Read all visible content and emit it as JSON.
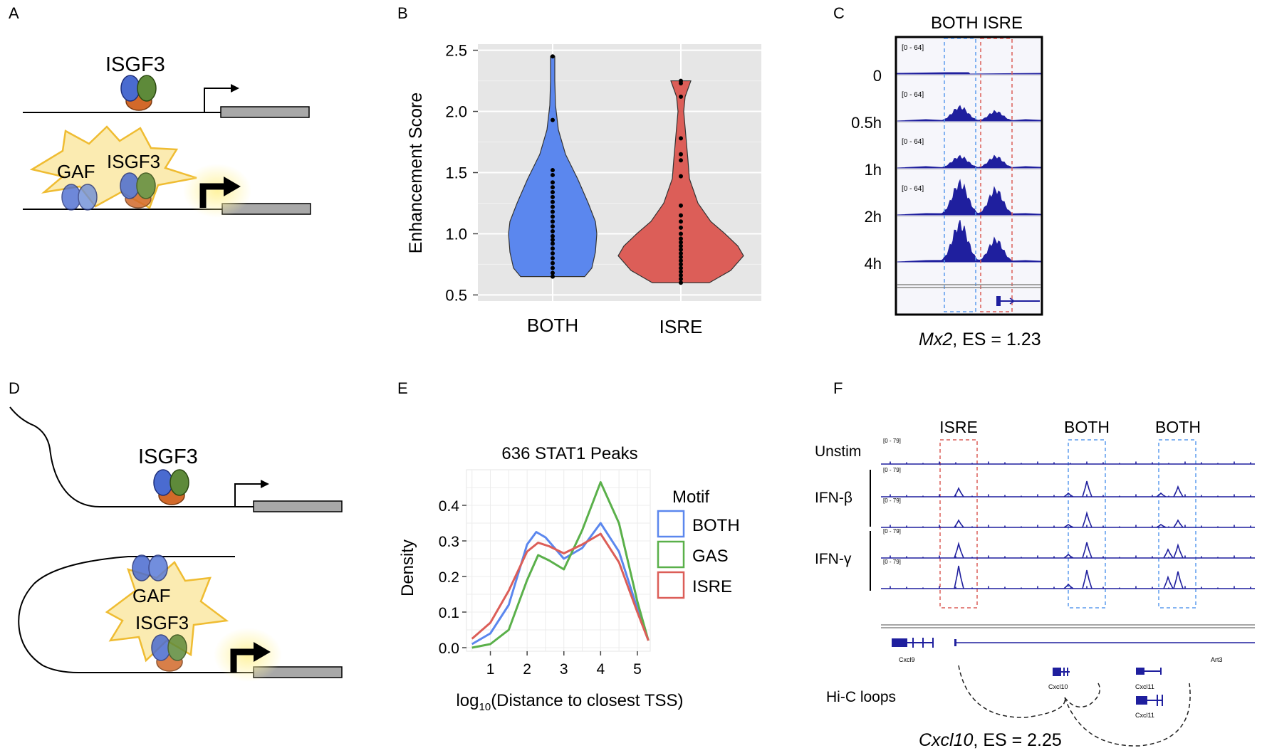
{
  "panels": {
    "a": "A",
    "b": "B",
    "c": "C",
    "d": "D",
    "e": "E",
    "f": "F"
  },
  "colors": {
    "both": "#5b87ee",
    "isre": "#dc5e58",
    "gas": "#5ab04a",
    "track": "#1f1f9e",
    "star": "#fbe9a8",
    "star_stroke": "#efbc32"
  },
  "panel_a": {
    "isgf3_top": "ISGF3",
    "gaf": "GAF",
    "isgf3_bottom": "ISGF3"
  },
  "panel_b": {
    "ylabel": "Enhancement Score",
    "yticks": [
      "0.5",
      "1.0",
      "1.5",
      "2.0",
      "2.5"
    ],
    "categories": [
      "BOTH",
      "ISRE"
    ]
  },
  "panel_c": {
    "header_both": "BOTH",
    "header_isre": "ISRE",
    "time_labels": [
      "0",
      "0.5h",
      "1h",
      "2h",
      "4h"
    ],
    "range_label": "[0 - 64]",
    "gene": "Mx2",
    "es_text": ", ES = 1.23"
  },
  "panel_d": {
    "isgf3_top": "ISGF3",
    "gaf": "GAF",
    "isgf3_bottom": "ISGF3"
  },
  "panel_e": {
    "title": "636 STAT1 Peaks",
    "ylabel": "Density",
    "xlabel_prefix": "log",
    "xlabel_sub": "10",
    "xlabel_suffix": "(Distance to closest TSS)",
    "legend_title": "Motif",
    "legend": [
      "BOTH",
      "GAS",
      "ISRE"
    ],
    "yticks": [
      "0.0",
      "0.1",
      "0.2",
      "0.3",
      "0.4"
    ],
    "xticks": [
      "1",
      "2",
      "3",
      "4",
      "5"
    ]
  },
  "panel_f": {
    "header_isre": "ISRE",
    "header_both_1": "BOTH",
    "header_both_2": "BOTH",
    "row_unstim": "Unstim",
    "row_ifnb": "IFN-β",
    "row_ifng": "IFN-γ",
    "range_label": "[0 - 79]",
    "genes": [
      "Cxcl9",
      "Art3",
      "Cxcl10",
      "Cxcl11",
      "Cxcl11"
    ],
    "hic_label": "Hi-C loops",
    "gene": "Cxcl10",
    "es_text": ", ES = 2.25"
  },
  "chart_data": [
    {
      "type": "violin",
      "panel": "B",
      "ylabel": "Enhancement Score",
      "ylim": [
        0.45,
        2.55
      ],
      "categories": [
        "BOTH",
        "ISRE"
      ],
      "series": [
        {
          "name": "BOTH",
          "min": 0.65,
          "max": 2.45,
          "points": [
            2.45,
            1.93,
            1.52,
            1.48,
            1.42,
            1.38,
            1.34,
            1.3,
            1.26,
            1.22,
            1.18,
            1.14,
            1.1,
            1.06,
            1.02,
            0.98,
            0.95,
            0.92,
            0.88,
            0.84,
            0.8,
            0.76,
            0.72,
            0.68,
            0.65
          ]
        },
        {
          "name": "ISRE",
          "min": 0.6,
          "max": 2.25,
          "points": [
            2.25,
            2.23,
            2.12,
            1.78,
            1.65,
            1.6,
            1.47,
            1.23,
            1.15,
            1.1,
            1.05,
            1.0,
            0.96,
            0.93,
            0.9,
            0.87,
            0.84,
            0.81,
            0.78,
            0.75,
            0.72,
            0.69,
            0.66,
            0.63,
            0.6
          ]
        }
      ]
    },
    {
      "type": "line",
      "panel": "E",
      "title": "636 STAT1 Peaks",
      "xlabel": "log10(Distance to closest TSS)",
      "ylabel": "Density",
      "xlim": [
        0.35,
        5.35
      ],
      "ylim": [
        -0.01,
        0.5
      ],
      "series": [
        {
          "name": "BOTH",
          "x": [
            0.5,
            1.0,
            1.5,
            2.0,
            2.25,
            2.5,
            3.0,
            3.5,
            4.0,
            4.5,
            5.0,
            5.3
          ],
          "y": [
            0.01,
            0.04,
            0.12,
            0.29,
            0.325,
            0.31,
            0.25,
            0.28,
            0.35,
            0.27,
            0.11,
            0.02
          ]
        },
        {
          "name": "GAS",
          "x": [
            0.5,
            1.0,
            1.5,
            2.0,
            2.3,
            2.6,
            3.0,
            3.5,
            4.0,
            4.5,
            5.0,
            5.3
          ],
          "y": [
            0.0,
            0.01,
            0.05,
            0.19,
            0.26,
            0.245,
            0.22,
            0.33,
            0.465,
            0.35,
            0.13,
            0.02
          ]
        },
        {
          "name": "ISRE",
          "x": [
            0.5,
            1.0,
            1.5,
            2.0,
            2.3,
            2.6,
            3.0,
            3.5,
            4.0,
            4.5,
            5.0,
            5.3
          ],
          "y": [
            0.025,
            0.07,
            0.16,
            0.27,
            0.295,
            0.285,
            0.265,
            0.29,
            0.32,
            0.24,
            0.1,
            0.02
          ]
        }
      ]
    }
  ]
}
